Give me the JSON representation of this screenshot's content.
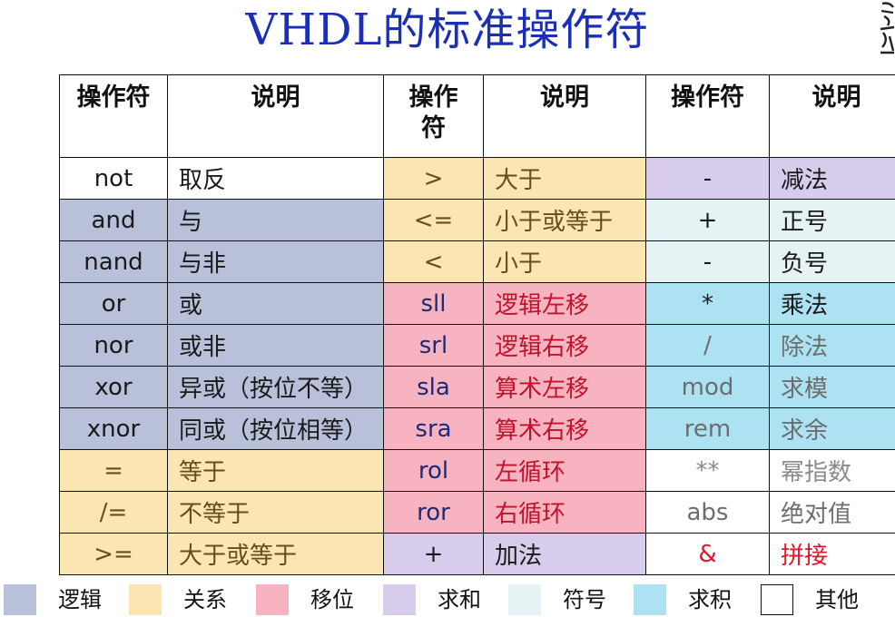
{
  "title": "VHDL的标准操作符",
  "headers": [
    "操作符",
    "说明",
    "操作\n符",
    "说明",
    "操作符",
    "说明"
  ],
  "rows": [
    [
      {
        "op": "not",
        "desc": "取反",
        "cat": "other",
        "color": "dark"
      },
      {
        "op": ">",
        "desc": "大于",
        "cat": "rel",
        "color": "brown"
      },
      {
        "op": "-",
        "desc": "减法",
        "cat": "sum",
        "color": "dark"
      }
    ],
    [
      {
        "op": "and",
        "desc": "与",
        "cat": "logic",
        "color": "dark"
      },
      {
        "op": "<=",
        "desc": "小于或等于",
        "cat": "rel",
        "color": "brown"
      },
      {
        "op": "+",
        "desc": "正号",
        "cat": "sign",
        "color": "dark"
      }
    ],
    [
      {
        "op": "nand",
        "desc": "与非",
        "cat": "logic",
        "color": "dark"
      },
      {
        "op": "<",
        "desc": "小于",
        "cat": "rel",
        "color": "brown"
      },
      {
        "op": "-",
        "desc": "负号",
        "cat": "sign",
        "color": "dark"
      }
    ],
    [
      {
        "op": "or",
        "desc": "或",
        "cat": "logic",
        "color": "dark"
      },
      {
        "op": "sll",
        "desc": "逻辑左移",
        "cat": "shift",
        "color": "navy",
        "desc_color": "red"
      },
      {
        "op": "*",
        "desc": "乘法",
        "cat": "prod",
        "color": "dark"
      }
    ],
    [
      {
        "op": "nor",
        "desc": "或非",
        "cat": "logic",
        "color": "dark"
      },
      {
        "op": "srl",
        "desc": "逻辑右移",
        "cat": "shift",
        "color": "navy",
        "desc_color": "red"
      },
      {
        "op": "/",
        "desc": "除法",
        "cat": "prod",
        "color": "gray"
      }
    ],
    [
      {
        "op": "xor",
        "desc": "异或（按位不等）",
        "cat": "logic",
        "color": "dark"
      },
      {
        "op": "sla",
        "desc": "算术左移",
        "cat": "shift",
        "color": "navy",
        "desc_color": "red"
      },
      {
        "op": "mod",
        "desc": "求模",
        "cat": "prod",
        "color": "gray"
      }
    ],
    [
      {
        "op": "xnor",
        "desc": "同或（按位相等）",
        "cat": "logic",
        "color": "dark"
      },
      {
        "op": "sra",
        "desc": "算术右移",
        "cat": "shift",
        "color": "navy",
        "desc_color": "red"
      },
      {
        "op": "rem",
        "desc": "求余",
        "cat": "prod",
        "color": "gray"
      }
    ],
    [
      {
        "op": "=",
        "desc": "等于",
        "cat": "rel",
        "color": "brown"
      },
      {
        "op": "rol",
        "desc": "左循环",
        "cat": "shift",
        "color": "navy",
        "desc_color": "red"
      },
      {
        "op": "**",
        "desc": "幂指数",
        "cat": "other",
        "color": "lightgray"
      }
    ],
    [
      {
        "op": "/=",
        "desc": "不等于",
        "cat": "rel",
        "color": "brown"
      },
      {
        "op": "ror",
        "desc": "右循环",
        "cat": "shift",
        "color": "navy",
        "desc_color": "red"
      },
      {
        "op": "abs",
        "desc": "绝对值",
        "cat": "other",
        "color": "gray"
      }
    ],
    [
      {
        "op": ">=",
        "desc": "大于或等于",
        "cat": "rel",
        "color": "brown"
      },
      {
        "op": "+",
        "desc": "加法",
        "cat": "sum",
        "color": "dark"
      },
      {
        "op": "&",
        "desc": "拼接",
        "cat": "other",
        "color": "bright-red"
      }
    ]
  ],
  "legend": [
    {
      "label": "逻辑",
      "cat": "logic"
    },
    {
      "label": "关系",
      "cat": "rel"
    },
    {
      "label": "移位",
      "cat": "shift"
    },
    {
      "label": "求和",
      "cat": "sum"
    },
    {
      "label": "符号",
      "cat": "sign"
    },
    {
      "label": "求积",
      "cat": "prod"
    },
    {
      "label": "其他",
      "cat": "other"
    }
  ],
  "colors": {
    "logic": "#b9c0da",
    "relation": "#fbe6b3",
    "shift": "#f7b4c0",
    "sum": "#d8ccec",
    "sign": "#e6f3f5",
    "product": "#ade2f3",
    "other": "#ffffff",
    "title": "#1a2fb5"
  }
}
